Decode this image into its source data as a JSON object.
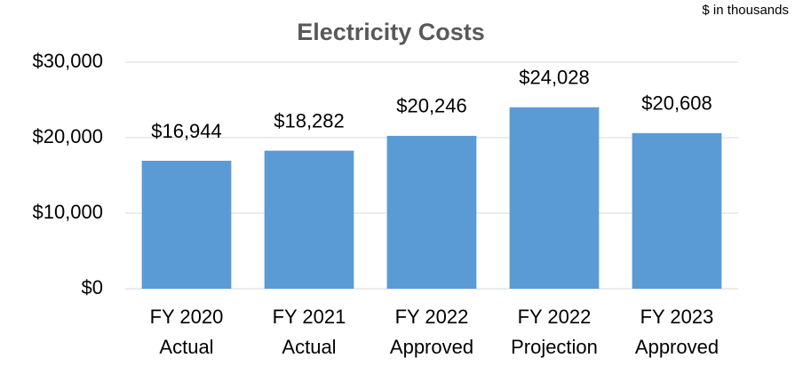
{
  "chart_data": {
    "type": "bar",
    "title": "Electricity Costs",
    "annotation": "$ in thousands",
    "categories": [
      [
        "FY 2020",
        "Actual"
      ],
      [
        "FY 2021",
        "Actual"
      ],
      [
        "FY 2022",
        "Approved"
      ],
      [
        "FY 2022",
        "Projection"
      ],
      [
        "FY 2023",
        "Approved"
      ]
    ],
    "values": [
      16944,
      18282,
      20246,
      24028,
      20608
    ],
    "value_labels": [
      "$16,944",
      "$18,282",
      "$20,246",
      "$24,028",
      "$20,608"
    ],
    "color": "#5b9bd5",
    "ylim": [
      0,
      30000
    ],
    "yticks": [
      {
        "value": 0,
        "label": "$0"
      },
      {
        "value": 10000,
        "label": "$10,000"
      },
      {
        "value": 20000,
        "label": "$20,000"
      },
      {
        "value": 30000,
        "label": "$30,000"
      }
    ],
    "grid": true
  }
}
